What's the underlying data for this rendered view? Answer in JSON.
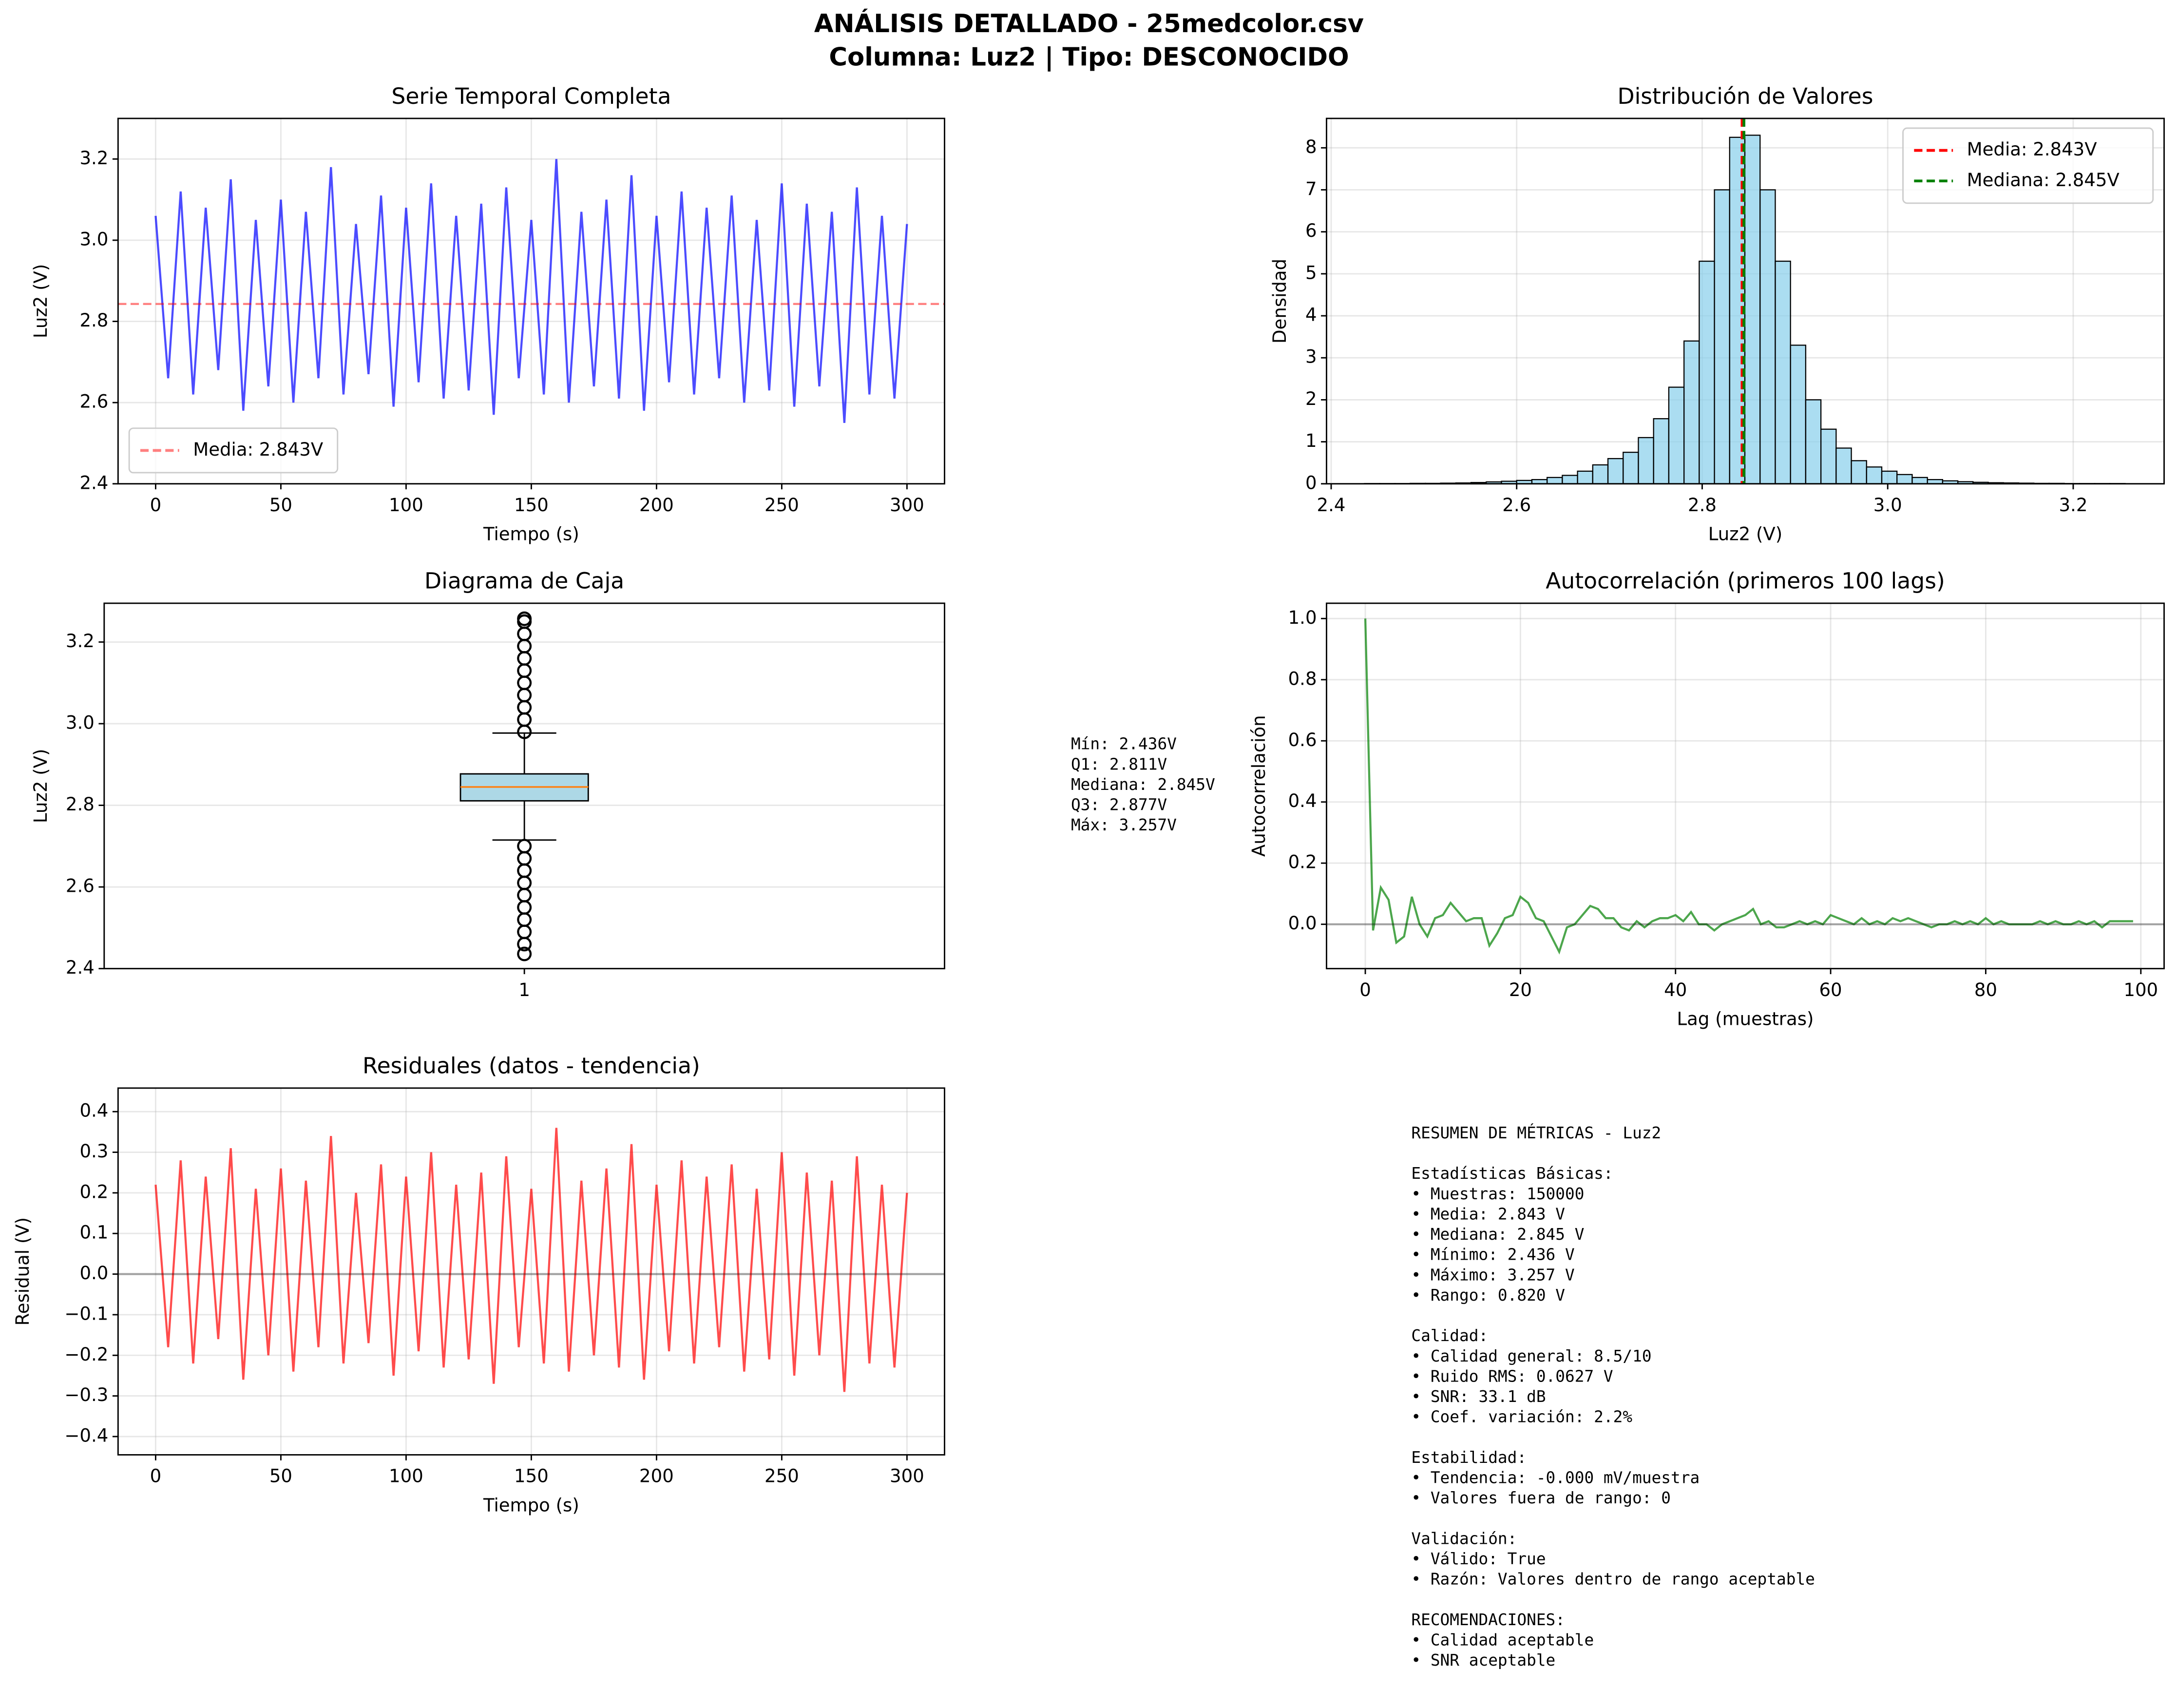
{
  "figure_title": [
    "ANÁLISIS DETALLADO - 25medcolor.csv",
    "Columna: Luz2 | Tipo: DESCONOCIDO"
  ],
  "chart_data": [
    {
      "type": "line",
      "title": "Serie Temporal Completa",
      "xlabel": "Tiempo (s)",
      "ylabel": "Luz2 (V)",
      "xlim": [
        -15,
        315
      ],
      "ylim": [
        2.4,
        3.3
      ],
      "xticks": [
        0,
        50,
        100,
        150,
        200,
        250,
        300
      ],
      "yticks": [
        2.4,
        2.6,
        2.8,
        {
          "value": 3,
          "label": "3.0"
        },
        3.2
      ],
      "grid": true,
      "legend": "lower left",
      "series": [
        {
          "color": "#0000ff",
          "alpha": 0.7,
          "x": [
            0,
            5,
            10,
            15,
            20,
            25,
            30,
            35,
            40,
            45,
            50,
            55,
            60,
            65,
            70,
            75,
            80,
            85,
            90,
            95,
            100,
            105,
            110,
            115,
            120,
            125,
            130,
            135,
            140,
            145,
            150,
            155,
            160,
            165,
            170,
            175,
            180,
            185,
            190,
            195,
            200,
            205,
            210,
            215,
            220,
            225,
            230,
            235,
            240,
            245,
            250,
            255,
            260,
            265,
            270,
            275,
            280,
            285,
            290,
            295,
            300
          ],
          "values": [
            3.06,
            2.66,
            3.12,
            2.62,
            3.08,
            2.68,
            3.15,
            2.58,
            3.05,
            2.64,
            3.1,
            2.6,
            3.07,
            2.66,
            3.18,
            2.62,
            3.04,
            2.67,
            3.11,
            2.59,
            3.08,
            2.65,
            3.14,
            2.61,
            3.06,
            2.63,
            3.09,
            2.57,
            3.13,
            2.66,
            3.05,
            2.62,
            3.2,
            2.6,
            3.07,
            2.64,
            3.1,
            2.61,
            3.16,
            2.58,
            3.06,
            2.65,
            3.12,
            2.62,
            3.08,
            2.66,
            3.11,
            2.6,
            3.05,
            2.63,
            3.14,
            2.59,
            3.09,
            2.64,
            3.07,
            2.55,
            3.13,
            2.62,
            3.06,
            2.61,
            3.04
          ]
        }
      ],
      "hlines": [
        {
          "value": 2.843,
          "color": "#ff0000",
          "alpha": 0.5,
          "dashed": true,
          "label": "Media: 2.843V"
        }
      ]
    },
    {
      "type": "histogram",
      "title": "Distribución de Valores",
      "xlabel": "Luz2 (V)",
      "ylabel": "Densidad",
      "xlim": [
        2.395,
        3.298
      ],
      "ylim": [
        0,
        8.7
      ],
      "xticks": [
        2.4,
        2.6,
        2.8,
        {
          "value": 3,
          "label": "3.0"
        },
        3.2
      ],
      "yticks": [
        0,
        1,
        2,
        3,
        4,
        5,
        6,
        7,
        8
      ],
      "grid": true,
      "legend": "upper right",
      "color": "#87ceeb",
      "edgecolor": "#000000",
      "bins": [
        2.436,
        2.4524,
        2.4688,
        2.4852,
        2.5016,
        2.518,
        2.5344,
        2.5508,
        2.5672,
        2.5836,
        2.6,
        2.6164,
        2.6328,
        2.6492,
        2.6656,
        2.682,
        2.6984,
        2.7148,
        2.7312,
        2.7476,
        2.764,
        2.7804,
        2.7968,
        2.8132,
        2.8296,
        2.846,
        2.8624,
        2.8788,
        2.8952,
        2.9116,
        2.928,
        2.9444,
        2.9608,
        2.9772,
        2.9936,
        3.01,
        3.0264,
        3.0428,
        3.0592,
        3.0756,
        3.092,
        3.1084,
        3.1248,
        3.1412,
        3.1576,
        3.174,
        3.1904,
        3.2068,
        3.2232,
        3.2396,
        3.256
      ],
      "values": [
        0.005,
        0.005,
        0.005,
        0.01,
        0.01,
        0.015,
        0.02,
        0.03,
        0.045,
        0.06,
        0.08,
        0.1,
        0.15,
        0.2,
        0.3,
        0.45,
        0.6,
        0.75,
        1.1,
        1.55,
        2.3,
        3.4,
        5.3,
        7.0,
        8.25,
        8.3,
        7.0,
        5.3,
        3.3,
        2.0,
        1.3,
        0.85,
        0.55,
        0.4,
        0.3,
        0.22,
        0.15,
        0.1,
        0.07,
        0.05,
        0.035,
        0.025,
        0.02,
        0.015,
        0.01,
        0.01,
        0.005,
        0.005,
        0.005,
        0.005
      ],
      "vlines": [
        {
          "value": 2.843,
          "color": "#ff0000",
          "dashed": true,
          "label": "Media: 2.843V"
        },
        {
          "value": 2.845,
          "color": "#008000",
          "dashed": true,
          "label": "Mediana: 2.845V"
        }
      ]
    },
    {
      "type": "box",
      "title": "Diagrama de Caja",
      "ylabel": "Luz2 (V)",
      "ylim": [
        2.4,
        3.295
      ],
      "yticks": [
        2.4,
        2.6,
        2.8,
        {
          "value": 3,
          "label": "3.0"
        },
        3.2
      ],
      "grid": true,
      "categories": [
        "1"
      ],
      "color": "#add8e6",
      "median_color": "#ff7f0e",
      "whislo": 2.715,
      "q1": 2.811,
      "median": 2.845,
      "q3": 2.877,
      "whishi": 2.977,
      "outliers": [
        2.436,
        2.46,
        2.49,
        2.52,
        2.55,
        2.58,
        2.61,
        2.64,
        2.67,
        2.7,
        2.98,
        3.01,
        3.04,
        3.07,
        3.1,
        3.13,
        3.16,
        3.19,
        3.22,
        3.25,
        3.257
      ],
      "stats_text": [
        "Mín: 2.436V",
        "Q1: 2.811V",
        "Mediana: 2.845V",
        "Q3: 2.877V",
        "Máx: 3.257V"
      ]
    },
    {
      "type": "line",
      "title": "Autocorrelación (primeros 100 lags)",
      "xlabel": "Lag (muestras)",
      "ylabel": "Autocorrelación",
      "xlim": [
        -5,
        103
      ],
      "ylim": [
        -0.145,
        1.05
      ],
      "xticks": [
        0,
        20,
        40,
        60,
        80,
        100
      ],
      "yticks": [
        {
          "value": 0,
          "label": "0.0"
        },
        0.2,
        0.4,
        0.6,
        0.8,
        {
          "value": 1,
          "label": "1.0"
        }
      ],
      "grid": true,
      "series": [
        {
          "color": "#008000",
          "alpha": 0.7,
          "x": [
            0,
            1,
            2,
            3,
            4,
            5,
            6,
            7,
            8,
            9,
            10,
            11,
            12,
            13,
            14,
            15,
            16,
            17,
            18,
            19,
            20,
            21,
            22,
            23,
            24,
            25,
            26,
            27,
            28,
            29,
            30,
            31,
            32,
            33,
            34,
            35,
            36,
            37,
            38,
            39,
            40,
            41,
            42,
            43,
            44,
            45,
            46,
            47,
            48,
            49,
            50,
            51,
            52,
            53,
            54,
            55,
            56,
            57,
            58,
            59,
            60,
            61,
            62,
            63,
            64,
            65,
            66,
            67,
            68,
            69,
            70,
            71,
            72,
            73,
            74,
            75,
            76,
            77,
            78,
            79,
            80,
            81,
            82,
            83,
            84,
            85,
            86,
            87,
            88,
            89,
            90,
            91,
            92,
            93,
            94,
            95,
            96,
            97,
            98,
            99
          ],
          "values": [
            1.0,
            -0.02,
            0.12,
            0.08,
            -0.06,
            -0.04,
            0.09,
            0.0,
            -0.04,
            0.02,
            0.03,
            0.07,
            0.04,
            0.01,
            0.02,
            0.02,
            -0.07,
            -0.03,
            0.02,
            0.03,
            0.09,
            0.07,
            0.02,
            0.01,
            -0.04,
            -0.09,
            -0.01,
            0.0,
            0.03,
            0.06,
            0.05,
            0.02,
            0.02,
            -0.01,
            -0.02,
            0.01,
            -0.01,
            0.01,
            0.02,
            0.02,
            0.03,
            0.01,
            0.04,
            0.0,
            0.0,
            -0.02,
            0.0,
            0.01,
            0.02,
            0.03,
            0.05,
            0.0,
            0.01,
            -0.01,
            -0.01,
            0.0,
            0.01,
            0.0,
            0.01,
            0.0,
            0.03,
            0.02,
            0.01,
            0.0,
            0.02,
            0.0,
            0.01,
            0.0,
            0.02,
            0.01,
            0.02,
            0.01,
            0.0,
            -0.01,
            0.0,
            0.0,
            0.01,
            0.0,
            0.01,
            0.0,
            0.02,
            0.0,
            0.01,
            0.0,
            0.0,
            0.0,
            0.0,
            0.01,
            0.0,
            0.01,
            0.0,
            0.0,
            0.01,
            0.0,
            0.01,
            -0.01,
            0.01,
            0.01,
            0.01,
            0.01
          ]
        }
      ],
      "hlines": [
        {
          "value": 0,
          "color": "#000000",
          "alpha": 0.3
        }
      ]
    },
    {
      "type": "line",
      "title": "Residuales (datos - tendencia)",
      "xlabel": "Tiempo (s)",
      "ylabel": "Residual (V)",
      "xlim": [
        -15,
        315
      ],
      "ylim": [
        -0.445,
        0.458
      ],
      "xticks": [
        0,
        50,
        100,
        150,
        200,
        250,
        300
      ],
      "yticks": [
        {
          "value": -0.4,
          "label": "−0.4"
        },
        {
          "value": -0.3,
          "label": "−0.3"
        },
        {
          "value": -0.2,
          "label": "−0.2"
        },
        {
          "value": -0.1,
          "label": "−0.1"
        },
        {
          "value": 0,
          "label": "0.0"
        },
        0.1,
        0.2,
        0.3,
        0.4
      ],
      "grid": true,
      "series": [
        {
          "color": "#ff0000",
          "alpha": 0.7,
          "x": [
            0,
            5,
            10,
            15,
            20,
            25,
            30,
            35,
            40,
            45,
            50,
            55,
            60,
            65,
            70,
            75,
            80,
            85,
            90,
            95,
            100,
            105,
            110,
            115,
            120,
            125,
            130,
            135,
            140,
            145,
            150,
            155,
            160,
            165,
            170,
            175,
            180,
            185,
            190,
            195,
            200,
            205,
            210,
            215,
            220,
            225,
            230,
            235,
            240,
            245,
            250,
            255,
            260,
            265,
            270,
            275,
            280,
            285,
            290,
            295,
            300
          ],
          "values": [
            0.22,
            -0.18,
            0.28,
            -0.22,
            0.24,
            -0.16,
            0.31,
            -0.26,
            0.21,
            -0.2,
            0.26,
            -0.24,
            0.23,
            -0.18,
            0.34,
            -0.22,
            0.2,
            -0.17,
            0.27,
            -0.25,
            0.24,
            -0.19,
            0.3,
            -0.23,
            0.22,
            -0.21,
            0.25,
            -0.27,
            0.29,
            -0.18,
            0.21,
            -0.22,
            0.36,
            -0.24,
            0.23,
            -0.2,
            0.26,
            -0.23,
            0.32,
            -0.26,
            0.22,
            -0.19,
            0.28,
            -0.22,
            0.24,
            -0.18,
            0.27,
            -0.24,
            0.21,
            -0.21,
            0.3,
            -0.25,
            0.25,
            -0.2,
            0.23,
            -0.29,
            0.29,
            -0.22,
            0.22,
            -0.23,
            0.2
          ]
        }
      ],
      "hlines": [
        {
          "value": 0,
          "color": "#000000",
          "alpha": 0.3
        }
      ]
    }
  ],
  "summary": {
    "blocks": [
      [
        "RESUMEN DE MÉTRICAS - Luz2"
      ],
      [
        "Estadísticas Básicas:",
        "• Muestras: 150000",
        "• Media: 2.843 V",
        "• Mediana: 2.845 V",
        "• Mínimo: 2.436 V",
        "• Máximo: 3.257 V",
        "• Rango: 0.820 V"
      ],
      [
        "Calidad:",
        "• Calidad general: 8.5/10",
        "• Ruido RMS: 0.0627 V",
        "• SNR: 33.1 dB",
        "• Coef. variación: 2.2%"
      ],
      [
        "Estabilidad:",
        "• Tendencia: -0.000 mV/muestra",
        "• Valores fuera de rango: 0"
      ],
      [
        "Validación:",
        "• Válido: True",
        "• Razón: Valores dentro de rango aceptable"
      ],
      [
        "RECOMENDACIONES:",
        "• Calidad aceptable",
        "• SNR aceptable"
      ]
    ]
  }
}
